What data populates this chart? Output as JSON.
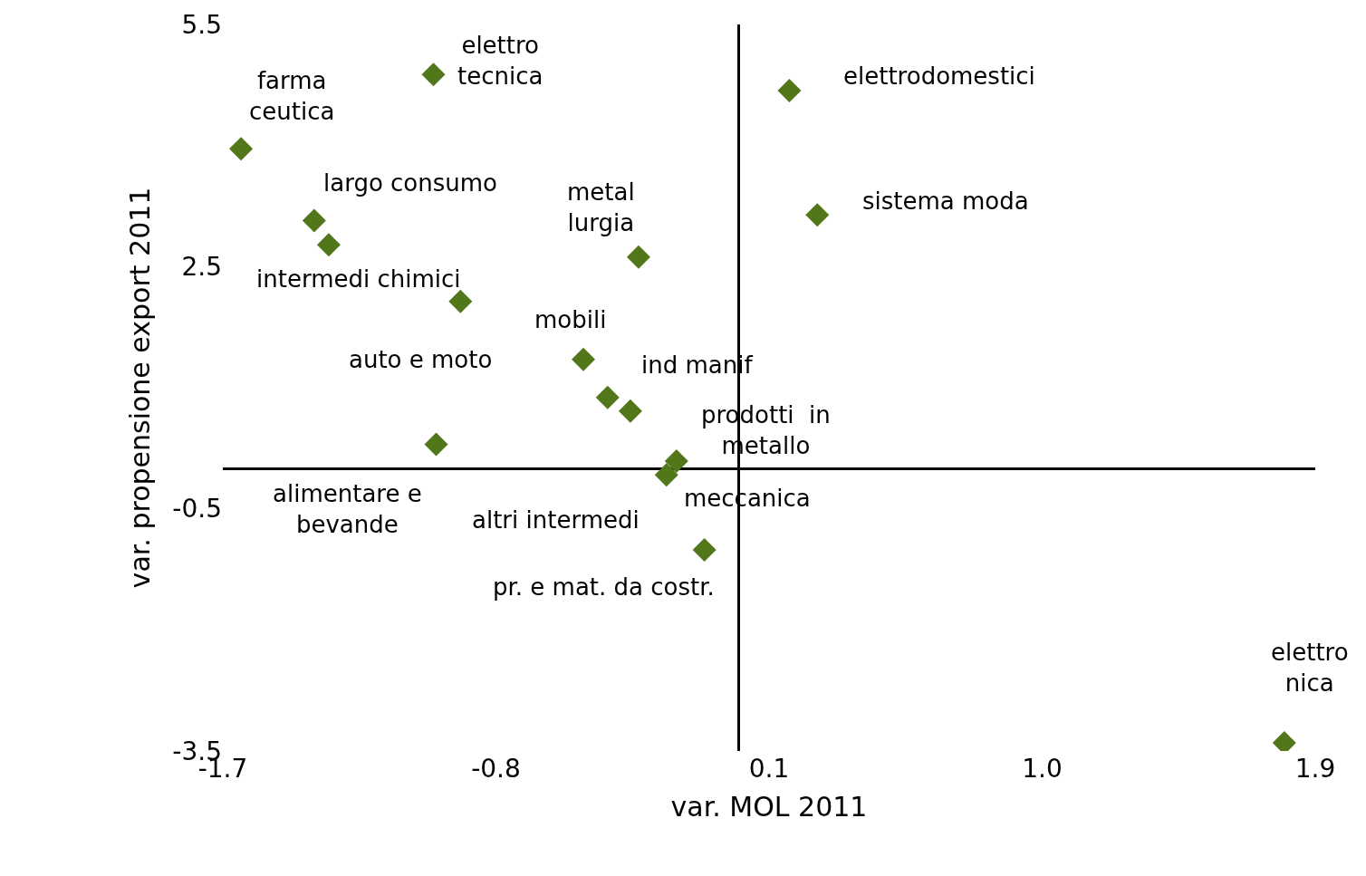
{
  "chart_data": {
    "type": "scatter",
    "xlabel": "var. MOL 2011",
    "ylabel": "var. propensione export 2011",
    "x": [
      -1.64,
      -1.006,
      -1.399,
      -1.351,
      -0.917,
      -0.33,
      -0.512,
      -0.432,
      -0.357,
      -0.997,
      -0.205,
      -0.238,
      -0.113,
      0.167,
      0.259,
      1.798
    ],
    "series": [
      {
        "color": "#52771a",
        "values": [
          3.96,
          4.88,
          3.07,
          2.77,
          2.07,
          2.62,
          1.35,
          0.88,
          0.71,
          0.3,
          0.09,
          -0.08,
          -1.01,
          4.68,
          3.14,
          -3.4
        ]
      }
    ],
    "marker": "diamond",
    "xlim": [
      -1.7,
      1.9
    ],
    "xticks": [
      -1.7,
      -0.8,
      0.1,
      {
        "value": 1,
        "label": "1.0"
      },
      1.9
    ],
    "ylim": [
      -3.5,
      5.5
    ],
    "yticks": [
      -3.5,
      -0.5,
      2.5,
      5.5
    ],
    "annotations": [
      "farma\nceutica",
      "elettro\ntecnica",
      "largo consumo",
      "intermedi chimici",
      "metal\nlurgia",
      "mobili",
      "auto e moto",
      "ind manif",
      "prodotti  in\nmetallo",
      "alimentare e\nbevande",
      "altri intermedi",
      "meccanica",
      "pr. e mat. da costr.",
      "elettrodomestici",
      "sistema moda",
      "elettro\nnica"
    ]
  }
}
